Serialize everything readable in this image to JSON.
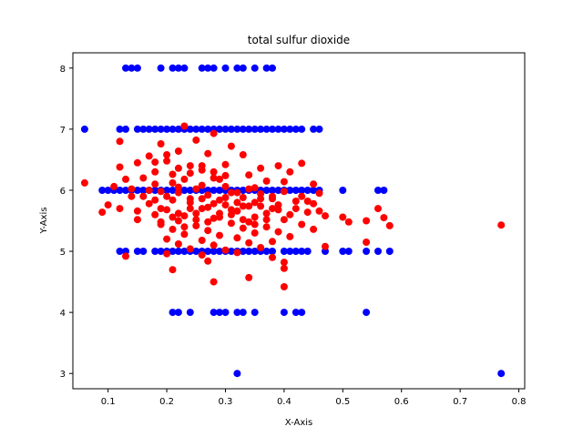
{
  "chart_data": {
    "type": "scatter",
    "title": "total sulfur dioxide",
    "xlabel": "X-Axis",
    "ylabel": "Y-Axis",
    "xlim": [
      0.04,
      0.81
    ],
    "ylim": [
      2.75,
      8.25
    ],
    "x_ticks": [
      "0.1",
      "0.2",
      "0.3",
      "0.4",
      "0.5",
      "0.6",
      "0.7",
      "0.8"
    ],
    "y_ticks": [
      "3",
      "4",
      "5",
      "6",
      "7",
      "8"
    ],
    "grid": false,
    "legend": "none",
    "series": [
      {
        "color": "#0000ff",
        "points": [
          [
            0.13,
            8
          ],
          [
            0.14,
            8
          ],
          [
            0.15,
            8
          ],
          [
            0.19,
            8
          ],
          [
            0.21,
            8
          ],
          [
            0.22,
            8
          ],
          [
            0.23,
            8
          ],
          [
            0.26,
            8
          ],
          [
            0.27,
            8
          ],
          [
            0.28,
            8
          ],
          [
            0.3,
            8
          ],
          [
            0.32,
            8
          ],
          [
            0.33,
            8
          ],
          [
            0.35,
            8
          ],
          [
            0.37,
            8
          ],
          [
            0.38,
            8
          ],
          [
            0.06,
            7
          ],
          [
            0.12,
            7
          ],
          [
            0.13,
            7
          ],
          [
            0.15,
            7
          ],
          [
            0.16,
            7
          ],
          [
            0.17,
            7
          ],
          [
            0.18,
            7
          ],
          [
            0.19,
            7
          ],
          [
            0.2,
            7
          ],
          [
            0.21,
            7
          ],
          [
            0.22,
            7
          ],
          [
            0.23,
            7
          ],
          [
            0.24,
            7
          ],
          [
            0.25,
            7
          ],
          [
            0.26,
            7
          ],
          [
            0.27,
            7
          ],
          [
            0.28,
            7
          ],
          [
            0.29,
            7
          ],
          [
            0.3,
            7
          ],
          [
            0.31,
            7
          ],
          [
            0.32,
            7
          ],
          [
            0.33,
            7
          ],
          [
            0.34,
            7
          ],
          [
            0.35,
            7
          ],
          [
            0.36,
            7
          ],
          [
            0.37,
            7
          ],
          [
            0.38,
            7
          ],
          [
            0.39,
            7
          ],
          [
            0.4,
            7
          ],
          [
            0.41,
            7
          ],
          [
            0.42,
            7
          ],
          [
            0.43,
            7
          ],
          [
            0.45,
            7
          ],
          [
            0.46,
            7
          ],
          [
            0.09,
            6
          ],
          [
            0.1,
            6
          ],
          [
            0.11,
            6
          ],
          [
            0.12,
            6
          ],
          [
            0.13,
            6
          ],
          [
            0.14,
            6
          ],
          [
            0.15,
            6
          ],
          [
            0.16,
            6
          ],
          [
            0.17,
            6
          ],
          [
            0.18,
            6
          ],
          [
            0.19,
            6
          ],
          [
            0.2,
            6
          ],
          [
            0.21,
            6
          ],
          [
            0.22,
            6
          ],
          [
            0.23,
            6
          ],
          [
            0.24,
            6
          ],
          [
            0.25,
            6
          ],
          [
            0.26,
            6
          ],
          [
            0.27,
            6
          ],
          [
            0.28,
            6
          ],
          [
            0.29,
            6
          ],
          [
            0.3,
            6
          ],
          [
            0.31,
            6
          ],
          [
            0.32,
            6
          ],
          [
            0.33,
            6
          ],
          [
            0.34,
            6
          ],
          [
            0.35,
            6
          ],
          [
            0.36,
            6
          ],
          [
            0.37,
            6
          ],
          [
            0.38,
            6
          ],
          [
            0.39,
            6
          ],
          [
            0.4,
            6
          ],
          [
            0.41,
            6
          ],
          [
            0.42,
            6
          ],
          [
            0.43,
            6
          ],
          [
            0.44,
            6
          ],
          [
            0.45,
            6
          ],
          [
            0.46,
            6
          ],
          [
            0.5,
            6
          ],
          [
            0.56,
            6
          ],
          [
            0.57,
            6
          ],
          [
            0.12,
            5
          ],
          [
            0.13,
            5
          ],
          [
            0.15,
            5
          ],
          [
            0.16,
            5
          ],
          [
            0.18,
            5
          ],
          [
            0.19,
            5
          ],
          [
            0.2,
            5
          ],
          [
            0.21,
            5
          ],
          [
            0.22,
            5
          ],
          [
            0.23,
            5
          ],
          [
            0.24,
            5
          ],
          [
            0.25,
            5
          ],
          [
            0.26,
            5
          ],
          [
            0.27,
            5
          ],
          [
            0.28,
            5
          ],
          [
            0.29,
            5
          ],
          [
            0.3,
            5
          ],
          [
            0.31,
            5
          ],
          [
            0.32,
            5
          ],
          [
            0.33,
            5
          ],
          [
            0.34,
            5
          ],
          [
            0.35,
            5
          ],
          [
            0.36,
            5
          ],
          [
            0.37,
            5
          ],
          [
            0.38,
            5
          ],
          [
            0.4,
            5
          ],
          [
            0.41,
            5
          ],
          [
            0.42,
            5
          ],
          [
            0.43,
            5
          ],
          [
            0.44,
            5
          ],
          [
            0.47,
            5
          ],
          [
            0.5,
            5
          ],
          [
            0.51,
            5
          ],
          [
            0.54,
            5
          ],
          [
            0.56,
            5
          ],
          [
            0.58,
            5
          ],
          [
            0.21,
            4
          ],
          [
            0.22,
            4
          ],
          [
            0.24,
            4
          ],
          [
            0.28,
            4
          ],
          [
            0.29,
            4
          ],
          [
            0.3,
            4
          ],
          [
            0.32,
            4
          ],
          [
            0.33,
            4
          ],
          [
            0.35,
            4
          ],
          [
            0.4,
            4
          ],
          [
            0.42,
            4
          ],
          [
            0.43,
            4
          ],
          [
            0.54,
            4
          ],
          [
            0.32,
            3
          ],
          [
            0.77,
            3
          ]
        ]
      },
      {
        "color": "#ff0000",
        "points": [
          [
            0.23,
            7.05
          ],
          [
            0.28,
            6.93
          ],
          [
            0.19,
            6.76
          ],
          [
            0.12,
            6.8
          ],
          [
            0.25,
            6.82
          ],
          [
            0.31,
            6.72
          ],
          [
            0.22,
            6.64
          ],
          [
            0.17,
            6.56
          ],
          [
            0.27,
            6.6
          ],
          [
            0.33,
            6.58
          ],
          [
            0.2,
            6.48
          ],
          [
            0.15,
            6.45
          ],
          [
            0.24,
            6.4
          ],
          [
            0.3,
            6.42
          ],
          [
            0.36,
            6.36
          ],
          [
            0.39,
            6.4
          ],
          [
            0.43,
            6.44
          ],
          [
            0.12,
            6.38
          ],
          [
            0.18,
            6.3
          ],
          [
            0.26,
            6.33
          ],
          [
            0.21,
            6.26
          ],
          [
            0.34,
            6.25
          ],
          [
            0.41,
            6.3
          ],
          [
            0.13,
            6.18
          ],
          [
            0.16,
            6.2
          ],
          [
            0.29,
            6.18
          ],
          [
            0.37,
            6.15
          ],
          [
            0.45,
            6.1
          ],
          [
            0.22,
            6.05
          ],
          [
            0.06,
            6.12
          ],
          [
            0.11,
            6.06
          ],
          [
            0.19,
            5.98
          ],
          [
            0.25,
            6.02
          ],
          [
            0.31,
            5.96
          ],
          [
            0.35,
            6.04
          ],
          [
            0.4,
            5.98
          ],
          [
            0.46,
            5.95
          ],
          [
            0.14,
            5.9
          ],
          [
            0.27,
            5.92
          ],
          [
            0.33,
            5.88
          ],
          [
            0.21,
            5.84
          ],
          [
            0.38,
            5.86
          ],
          [
            0.42,
            5.82
          ],
          [
            0.17,
            5.78
          ],
          [
            0.24,
            5.8
          ],
          [
            0.3,
            5.76
          ],
          [
            0.36,
            5.74
          ],
          [
            0.45,
            5.78
          ],
          [
            0.1,
            5.76
          ],
          [
            0.12,
            5.7
          ],
          [
            0.2,
            5.68
          ],
          [
            0.26,
            5.7
          ],
          [
            0.32,
            5.66
          ],
          [
            0.39,
            5.68
          ],
          [
            0.44,
            5.64
          ],
          [
            0.09,
            5.64
          ],
          [
            0.18,
            5.6
          ],
          [
            0.23,
            5.58
          ],
          [
            0.29,
            5.62
          ],
          [
            0.35,
            5.56
          ],
          [
            0.41,
            5.6
          ],
          [
            0.47,
            5.58
          ],
          [
            0.15,
            5.52
          ],
          [
            0.22,
            5.5
          ],
          [
            0.28,
            5.54
          ],
          [
            0.34,
            5.48
          ],
          [
            0.4,
            5.52
          ],
          [
            0.5,
            5.56
          ],
          [
            0.19,
            5.44
          ],
          [
            0.25,
            5.42
          ],
          [
            0.31,
            5.46
          ],
          [
            0.37,
            5.4
          ],
          [
            0.43,
            5.44
          ],
          [
            0.51,
            5.48
          ],
          [
            0.21,
            5.36
          ],
          [
            0.27,
            5.34
          ],
          [
            0.33,
            5.38
          ],
          [
            0.39,
            5.32
          ],
          [
            0.45,
            5.36
          ],
          [
            0.54,
            5.5
          ],
          [
            0.23,
            5.28
          ],
          [
            0.29,
            5.26
          ],
          [
            0.35,
            5.3
          ],
          [
            0.41,
            5.24
          ],
          [
            0.56,
            5.7
          ],
          [
            0.2,
            5.2
          ],
          [
            0.26,
            5.18
          ],
          [
            0.32,
            5.22
          ],
          [
            0.38,
            5.16
          ],
          [
            0.57,
            5.55
          ],
          [
            0.22,
            5.12
          ],
          [
            0.28,
            5.1
          ],
          [
            0.34,
            5.14
          ],
          [
            0.47,
            5.08
          ],
          [
            0.54,
            5.15
          ],
          [
            0.58,
            5.42
          ],
          [
            0.24,
            5.04
          ],
          [
            0.3,
            5.02
          ],
          [
            0.36,
            5.06
          ],
          [
            0.13,
            4.92
          ],
          [
            0.2,
            4.96
          ],
          [
            0.26,
            4.94
          ],
          [
            0.32,
            4.98
          ],
          [
            0.38,
            4.9
          ],
          [
            0.21,
            4.7
          ],
          [
            0.27,
            4.84
          ],
          [
            0.4,
            4.82
          ],
          [
            0.4,
            4.72
          ],
          [
            0.34,
            4.57
          ],
          [
            0.28,
            4.5
          ],
          [
            0.4,
            4.42
          ],
          [
            0.77,
            5.43
          ],
          [
            0.16,
            5.9
          ],
          [
            0.18,
            6.1
          ],
          [
            0.19,
            5.7
          ],
          [
            0.21,
            6.12
          ],
          [
            0.22,
            5.62
          ],
          [
            0.23,
            6.18
          ],
          [
            0.24,
            5.86
          ],
          [
            0.25,
            5.62
          ],
          [
            0.26,
            6.08
          ],
          [
            0.27,
            5.72
          ],
          [
            0.28,
            6.2
          ],
          [
            0.29,
            5.84
          ],
          [
            0.3,
            6.06
          ],
          [
            0.31,
            5.68
          ],
          [
            0.32,
            5.96
          ],
          [
            0.33,
            5.74
          ],
          [
            0.34,
            6.02
          ],
          [
            0.35,
            5.8
          ],
          [
            0.36,
            5.94
          ],
          [
            0.37,
            5.62
          ],
          [
            0.38,
            5.9
          ],
          [
            0.39,
            5.76
          ],
          [
            0.4,
            6.14
          ],
          [
            0.42,
            5.7
          ],
          [
            0.43,
            5.9
          ],
          [
            0.44,
            5.82
          ],
          [
            0.46,
            5.66
          ],
          [
            0.14,
            6.02
          ],
          [
            0.15,
            5.66
          ],
          [
            0.17,
            6.0
          ],
          [
            0.18,
            5.84
          ],
          [
            0.2,
            5.9
          ],
          [
            0.22,
            5.96
          ],
          [
            0.24,
            5.7
          ],
          [
            0.26,
            5.86
          ],
          [
            0.28,
            5.78
          ],
          [
            0.3,
            5.88
          ],
          [
            0.32,
            5.8
          ],
          [
            0.34,
            5.74
          ],
          [
            0.36,
            5.86
          ],
          [
            0.38,
            5.7
          ],
          [
            0.29,
            5.56
          ],
          [
            0.31,
            5.6
          ],
          [
            0.27,
            5.48
          ],
          [
            0.25,
            5.52
          ],
          [
            0.23,
            5.4
          ],
          [
            0.33,
            5.52
          ],
          [
            0.35,
            5.44
          ],
          [
            0.37,
            5.52
          ],
          [
            0.21,
            5.56
          ],
          [
            0.19,
            5.48
          ],
          [
            0.24,
            6.28
          ],
          [
            0.26,
            6.4
          ],
          [
            0.28,
            6.3
          ],
          [
            0.3,
            6.24
          ],
          [
            0.22,
            6.36
          ],
          [
            0.2,
            6.58
          ],
          [
            0.18,
            6.46
          ]
        ]
      }
    ]
  }
}
